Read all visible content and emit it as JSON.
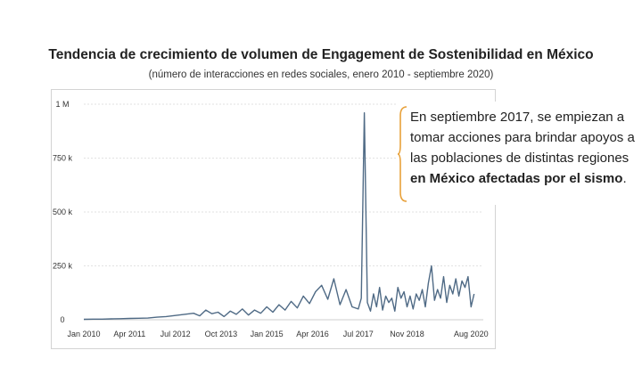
{
  "header": {
    "title": "Tendencia de crecimiento de volumen de Engagement de Sostenibilidad en México",
    "subtitle": "(número de interacciones en redes sociales, enero 2010 - septiembre 2020)"
  },
  "annotation": {
    "text_part1": "En septiembre 2017, se empiezan a tomar acciones para brindar apoyos a las poblaciones de distintas regiones ",
    "text_bold": "en México afectadas por el sismo",
    "text_end": "."
  },
  "colors": {
    "line": "#4f6a85",
    "grid": "#e2e2e2",
    "bracket": "#e8a13a",
    "tick_text": "#333333"
  },
  "chart_data": {
    "type": "line",
    "title": "Tendencia de crecimiento de volumen de Engagement de Sostenibilidad en México",
    "subtitle": "(número de interacciones en redes sociales, enero 2010 - septiembre 2020)",
    "xlabel": "",
    "ylabel": "",
    "ylim": [
      0,
      1000000
    ],
    "yticks": [
      {
        "value": 0,
        "label": "0"
      },
      {
        "value": 250000,
        "label": "250 k"
      },
      {
        "value": 500000,
        "label": "500 k"
      },
      {
        "value": 750000,
        "label": "750 k"
      },
      {
        "value": 1000000,
        "label": "1 M"
      }
    ],
    "xlim": [
      "2010-01",
      "2020-12"
    ],
    "xticks": [
      {
        "value": "2010-01",
        "label": "Jan 2010"
      },
      {
        "value": "2011-04",
        "label": "Apr 2011"
      },
      {
        "value": "2012-07",
        "label": "Jul 2012"
      },
      {
        "value": "2013-10",
        "label": "Oct 2013"
      },
      {
        "value": "2015-01",
        "label": "Jan 2015"
      },
      {
        "value": "2016-04",
        "label": "Apr 2016"
      },
      {
        "value": "2017-07",
        "label": "Jul 2017"
      },
      {
        "value": "2018-11",
        "label": "Nov 2018"
      },
      {
        "value": "2020-08",
        "label": "Aug 2020"
      }
    ],
    "grid": true,
    "series": [
      {
        "x": [
          "2010-01",
          "2010-04",
          "2010-07",
          "2010-10",
          "2011-01",
          "2011-04",
          "2011-07",
          "2011-10",
          "2012-01",
          "2012-04",
          "2012-07",
          "2012-10",
          "2013-01",
          "2013-03",
          "2013-05",
          "2013-07",
          "2013-09",
          "2013-11",
          "2014-01",
          "2014-03",
          "2014-05",
          "2014-07",
          "2014-09",
          "2014-11",
          "2015-01",
          "2015-03",
          "2015-05",
          "2015-07",
          "2015-09",
          "2015-11",
          "2016-01",
          "2016-03",
          "2016-05",
          "2016-07",
          "2016-09",
          "2016-11",
          "2017-01",
          "2017-03",
          "2017-05",
          "2017-07",
          "2017-08",
          "2017-09",
          "2017-10",
          "2017-11",
          "2017-12",
          "2018-01",
          "2018-02",
          "2018-03",
          "2018-04",
          "2018-05",
          "2018-06",
          "2018-07",
          "2018-08",
          "2018-09",
          "2018-10",
          "2018-11",
          "2018-12",
          "2019-01",
          "2019-02",
          "2019-03",
          "2019-04",
          "2019-05",
          "2019-06",
          "2019-07",
          "2019-08",
          "2019-09",
          "2019-10",
          "2019-11",
          "2019-12",
          "2020-01",
          "2020-02",
          "2020-03",
          "2020-04",
          "2020-05",
          "2020-06",
          "2020-07",
          "2020-08",
          "2020-09"
        ],
        "values": [
          2000,
          3000,
          3000,
          4000,
          5000,
          6000,
          7000,
          8000,
          12000,
          15000,
          20000,
          25000,
          30000,
          18000,
          45000,
          28000,
          35000,
          15000,
          40000,
          25000,
          50000,
          22000,
          45000,
          30000,
          60000,
          35000,
          70000,
          45000,
          85000,
          55000,
          110000,
          75000,
          130000,
          160000,
          95000,
          190000,
          70000,
          140000,
          60000,
          50000,
          100000,
          960000,
          80000,
          40000,
          120000,
          60000,
          150000,
          45000,
          110000,
          80000,
          100000,
          40000,
          150000,
          100000,
          130000,
          60000,
          110000,
          50000,
          120000,
          90000,
          140000,
          60000,
          170000,
          250000,
          90000,
          140000,
          100000,
          200000,
          80000,
          160000,
          120000,
          190000,
          110000,
          180000,
          150000,
          200000,
          60000,
          120000
        ]
      }
    ]
  }
}
